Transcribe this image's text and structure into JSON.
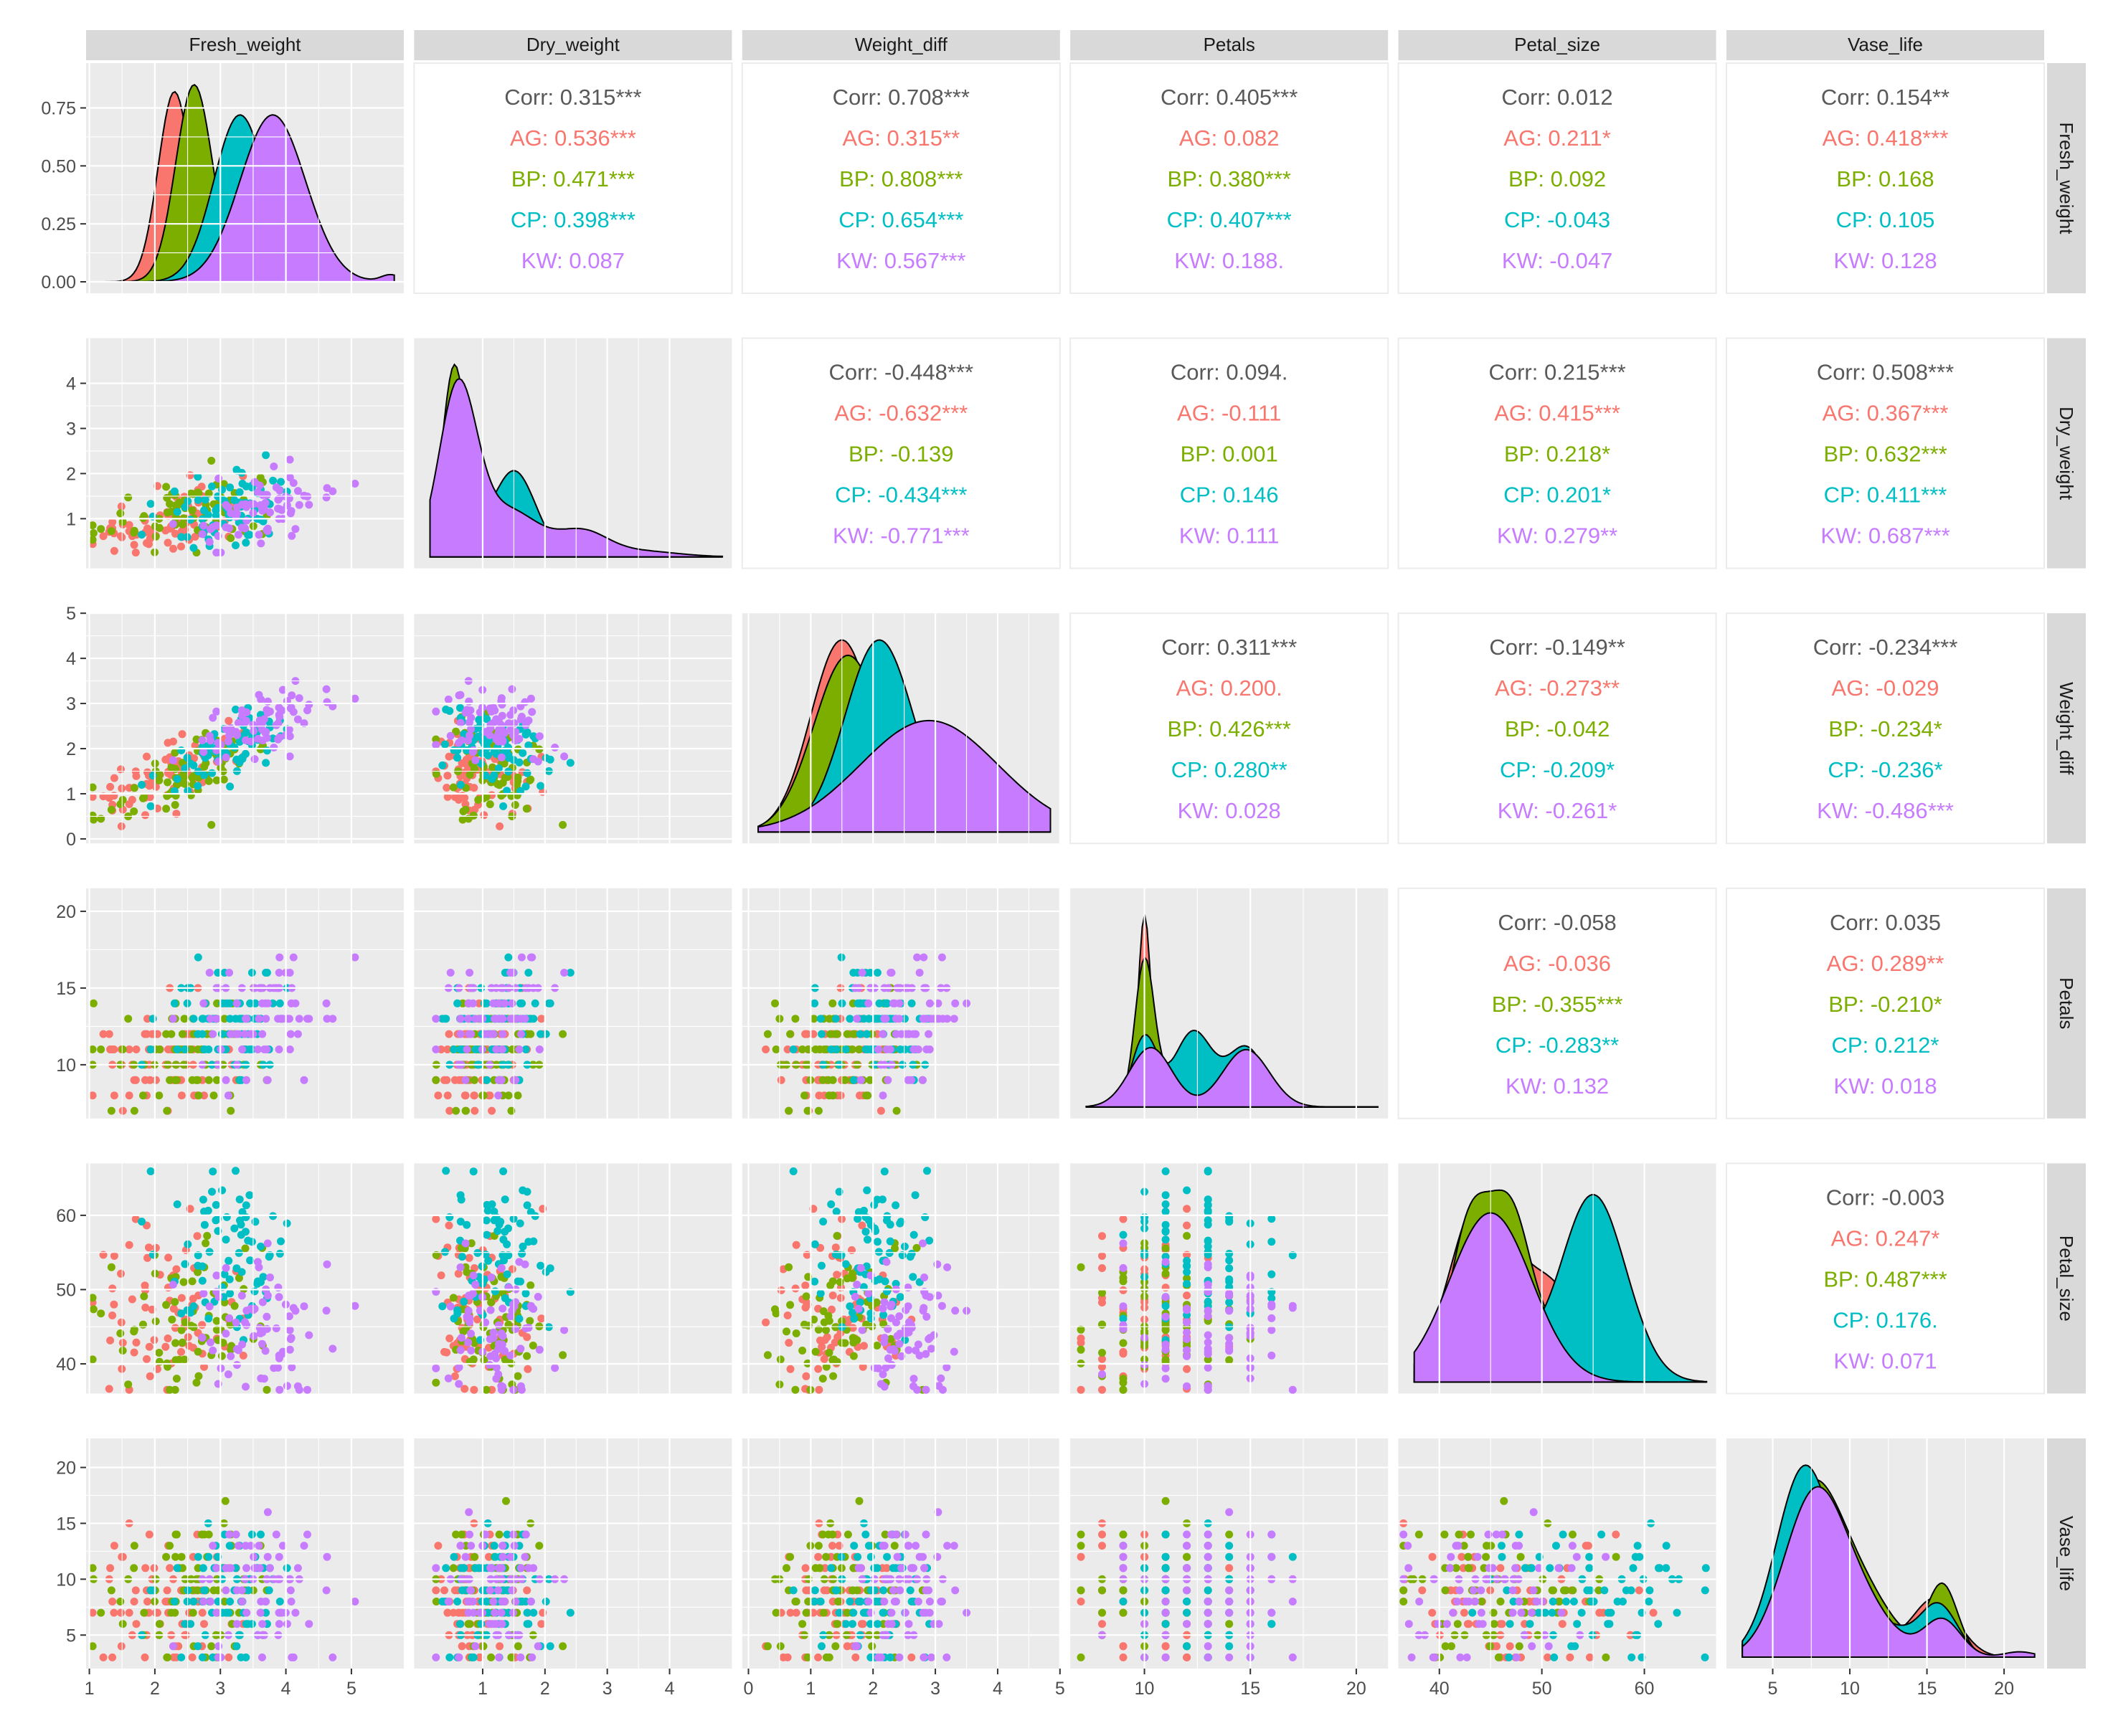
{
  "chart_data": {
    "type": "scatter",
    "title": "",
    "variables": [
      "Fresh_weight",
      "Dry_weight",
      "Weight_diff",
      "Petals",
      "Petal_size",
      "Vase_life"
    ],
    "groups": [
      {
        "name": "AG",
        "color": "#F8766D"
      },
      {
        "name": "BP",
        "color": "#7CAE00"
      },
      {
        "name": "CP",
        "color": "#00BFC4"
      },
      {
        "name": "KW",
        "color": "#C77CFF"
      }
    ],
    "overall_color": "#595959",
    "axis_ranges": {
      "Fresh_weight": [
        0.95,
        5.8
      ],
      "Dry_weight": [
        -0.1,
        5.0
      ],
      "Weight_diff": [
        -0.1,
        5.0
      ],
      "Petals": [
        6.5,
        21.5
      ],
      "Petal_size": [
        36,
        67
      ],
      "Vase_life": [
        2.0,
        22.6
      ]
    },
    "ticks": {
      "Fresh_weight": [
        1,
        2,
        3,
        4,
        5
      ],
      "Dry_weight": [
        1,
        2,
        3,
        4
      ],
      "Weight_diff": [
        0,
        1,
        2,
        3,
        4,
        5
      ],
      "Petals": [
        10,
        15,
        20
      ],
      "Petal_size": [
        40,
        50,
        60
      ],
      "Vase_life": [
        5,
        10,
        15,
        20
      ]
    },
    "density_axis": {
      "ticks": [
        0.0,
        0.25,
        0.5,
        0.75
      ],
      "labels": [
        "0.00",
        "0.25",
        "0.50",
        "0.75"
      ],
      "max": 0.9
    },
    "correlations": {
      "1-0": [
        "Corr: 0.315***",
        "AG: 0.536***",
        "BP: 0.471***",
        "CP: 0.398***",
        "KW: 0.087"
      ],
      "2-0": [
        "Corr: 0.708***",
        "AG: 0.315**",
        "BP: 0.808***",
        "CP: 0.654***",
        "KW: 0.567***"
      ],
      "3-0": [
        "Corr: 0.405***",
        "AG: 0.082",
        "BP: 0.380***",
        "CP: 0.407***",
        "KW: 0.188."
      ],
      "4-0": [
        "Corr: 0.012",
        "AG: 0.211*",
        "BP: 0.092",
        "CP: -0.043",
        "KW: -0.047"
      ],
      "5-0": [
        "Corr: 0.154**",
        "AG: 0.418***",
        "BP: 0.168",
        "CP: 0.105",
        "KW: 0.128"
      ],
      "2-1": [
        "Corr: -0.448***",
        "AG: -0.632***",
        "BP: -0.139",
        "CP: -0.434***",
        "KW: -0.771***"
      ],
      "3-1": [
        "Corr: 0.094.",
        "AG: -0.111",
        "BP: 0.001",
        "CP: 0.146",
        "KW: 0.111"
      ],
      "4-1": [
        "Corr: 0.215***",
        "AG: 0.415***",
        "BP: 0.218*",
        "CP: 0.201*",
        "KW: 0.279**"
      ],
      "5-1": [
        "Corr: 0.508***",
        "AG: 0.367***",
        "BP: 0.632***",
        "CP: 0.411***",
        "KW: 0.687***"
      ],
      "3-2": [
        "Corr: 0.311***",
        "AG: 0.200.",
        "BP: 0.426***",
        "CP: 0.280**",
        "KW: 0.028"
      ],
      "4-2": [
        "Corr: -0.149**",
        "AG: -0.273**",
        "BP: -0.042",
        "CP: -0.209*",
        "KW: -0.261*"
      ],
      "5-2": [
        "Corr: -0.234***",
        "AG: -0.029",
        "BP: -0.234*",
        "CP: -0.236*",
        "KW: -0.486***"
      ],
      "4-3": [
        "Corr: -0.058",
        "AG: -0.036",
        "BP: -0.355***",
        "CP: -0.283**",
        "KW: 0.132"
      ],
      "5-3": [
        "Corr: 0.035",
        "AG: 0.289**",
        "BP: -0.210*",
        "CP: 0.212*",
        "KW: 0.018"
      ],
      "5-4": [
        "Corr: -0.003",
        "AG: 0.247*",
        "BP: 0.487***",
        "CP: 0.176.",
        "KW: 0.071"
      ]
    },
    "density_peaks": {
      "Fresh_weight": {
        "AG": [
          [
            2.3,
            0.82,
            0.25
          ]
        ],
        "BP": [
          [
            2.6,
            0.85,
            0.28
          ]
        ],
        "CP": [
          [
            3.3,
            0.72,
            0.4
          ]
        ],
        "KW": [
          [
            3.8,
            0.72,
            0.5
          ],
          [
            5.6,
            0.03,
            0.15
          ]
        ]
      },
      "Dry_weight": {
        "AG": [
          [
            0.6,
            4.2,
            0.25
          ]
        ],
        "BP": [
          [
            0.55,
            4.9,
            0.2
          ],
          [
            1.5,
            1.0,
            0.3
          ]
        ],
        "CP": [
          [
            0.6,
            3.9,
            0.22
          ],
          [
            1.5,
            2.2,
            0.35
          ]
        ],
        "KW": [
          [
            0.6,
            4.2,
            0.3
          ],
          [
            1.4,
            1.2,
            0.5
          ],
          [
            2.6,
            0.6,
            0.4
          ],
          [
            3.5,
            0.15,
            0.6
          ]
        ]
      },
      "Weight_diff": {
        "AG": [
          [
            1.5,
            1.0,
            0.5
          ]
        ],
        "BP": [
          [
            1.6,
            0.92,
            0.55
          ]
        ],
        "CP": [
          [
            2.1,
            1.0,
            0.55
          ]
        ],
        "KW": [
          [
            2.9,
            0.58,
            1.1
          ]
        ]
      },
      "Petals": {
        "AG": [
          [
            10,
            0.95,
            0.3
          ],
          [
            12,
            0.25,
            0.9
          ]
        ],
        "BP": [
          [
            10,
            0.7,
            0.45
          ],
          [
            12,
            0.22,
            1.2
          ]
        ],
        "CP": [
          [
            10,
            0.35,
            0.6
          ],
          [
            12.3,
            0.38,
            0.9
          ],
          [
            14.8,
            0.3,
            0.9
          ]
        ],
        "KW": [
          [
            10.3,
            0.3,
            1.0
          ],
          [
            14.8,
            0.29,
            1.1
          ]
        ]
      },
      "Petal_size": {
        "AG": [
          [
            44,
            0.7,
            3.0
          ],
          [
            51,
            0.35,
            3.0
          ]
        ],
        "BP": [
          [
            43,
            0.6,
            2.0
          ],
          [
            47,
            0.6,
            2.0
          ],
          [
            53,
            0.2,
            3.0
          ]
        ],
        "CP": [
          [
            44,
            0.4,
            3.0
          ],
          [
            55,
            0.72,
            3.2
          ]
        ],
        "KW": [
          [
            45,
            0.65,
            4.0
          ]
        ]
      },
      "Vase_life": {
        "AG": [
          [
            8,
            0.6,
            2.2
          ],
          [
            15.5,
            0.22,
            1.5
          ]
        ],
        "BP": [
          [
            7.5,
            0.62,
            2.0
          ],
          [
            11,
            0.2,
            2.0
          ],
          [
            16,
            0.27,
            1.0
          ]
        ],
        "CP": [
          [
            7,
            0.68,
            1.8
          ],
          [
            11,
            0.15,
            2.5
          ],
          [
            15.8,
            0.18,
            1.2
          ]
        ],
        "KW": [
          [
            7.7,
            0.6,
            2.0
          ],
          [
            11,
            0.15,
            2.0
          ],
          [
            16,
            0.14,
            1.2
          ],
          [
            21,
            0.02,
            1.0
          ]
        ]
      }
    },
    "gridlines": true,
    "legend": "none"
  }
}
